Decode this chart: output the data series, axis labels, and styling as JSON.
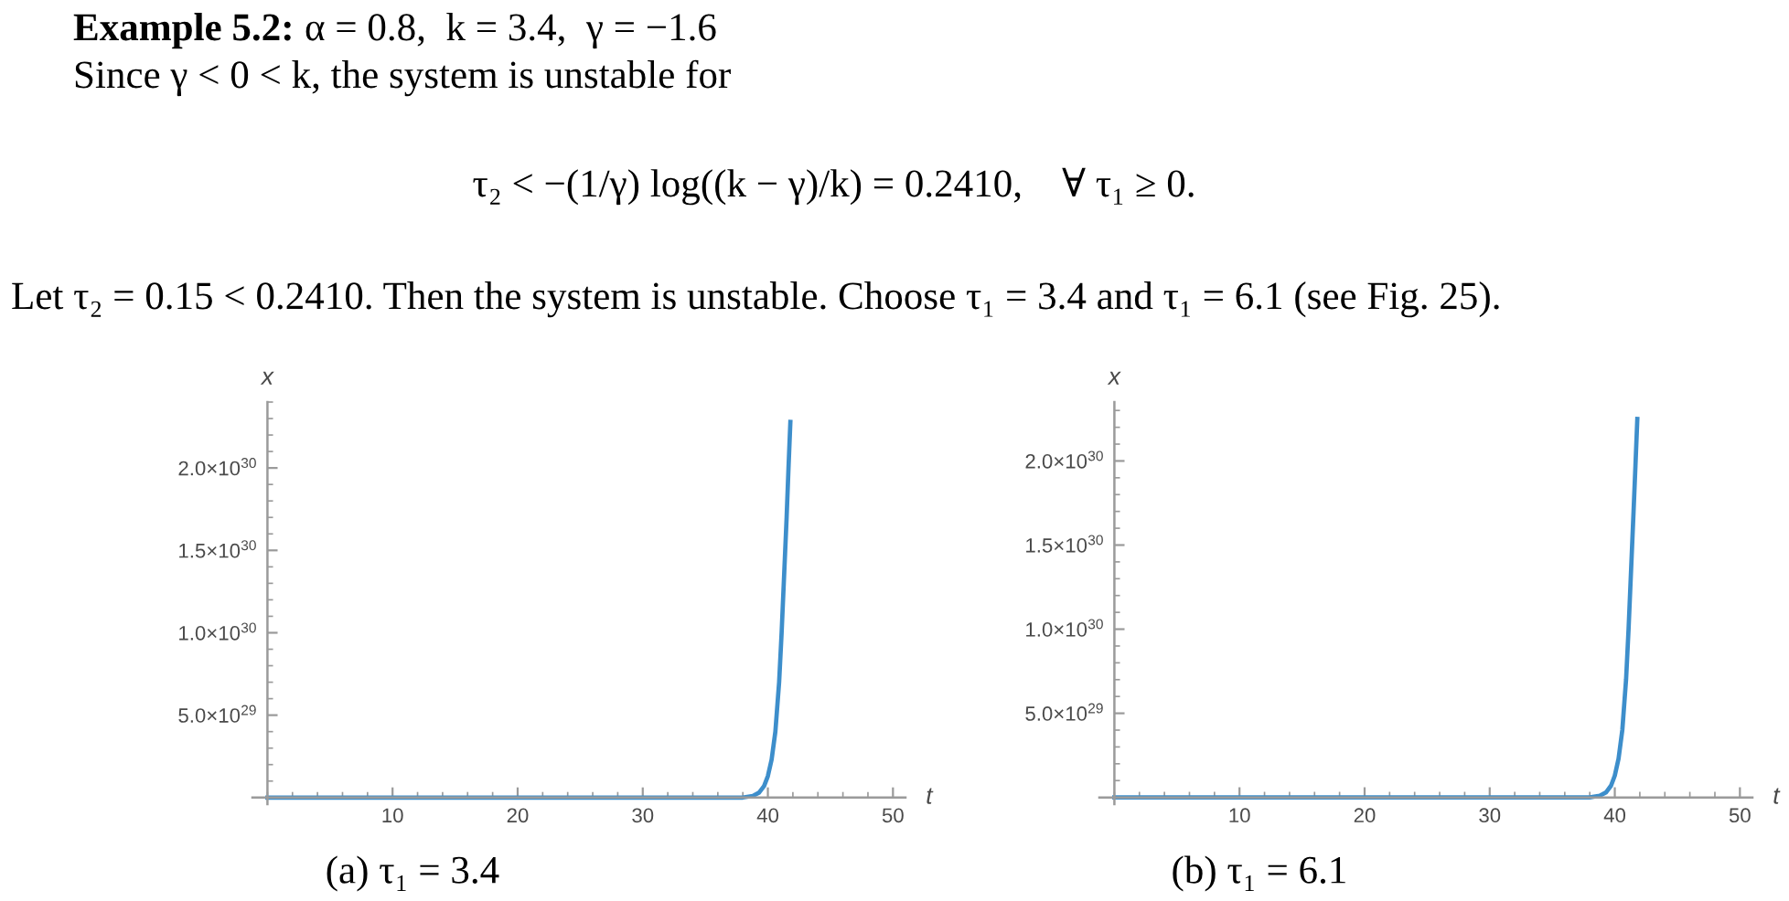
{
  "chart_data": [
    {
      "type": "line",
      "title": "Example 5.2:",
      "subtitle": "α = 0.8,  k = 3.4,  γ = −1.6",
      "annotations": [
        "Since γ < 0 < k, the system is unstable for",
        "τ₂ < −(1/γ) log((k − γ)/k) = 0.2410,    ∀ τ₁ ≥ 0.",
        "Let τ₂ = 0.15 < 0.2410. Then the system is unstable. Choose τ₁ = 3.4 and τ₁ = 6.1 (see Fig. 25).",
        "(a) τ₁ = 3.4"
      ],
      "xlabel": "t",
      "ylabel": "x",
      "xlim": [
        -1.2,
        51
      ],
      "xticks": [
        10,
        20,
        30,
        40,
        50
      ],
      "ylim": [
        -4e+28,
        2.4e+30
      ],
      "yticks": [
        {
          "value": 5e+29,
          "label": "5.0×10$^{29}$"
        },
        {
          "value": 1e+30,
          "label": "1.0×10$^{30}$"
        },
        {
          "value": 1.5e+30,
          "label": "1.5×10$^{30}$"
        },
        {
          "value": 2e+30,
          "label": "2.0×10$^{30}$"
        }
      ],
      "series": [
        {
          "color": "#3d8ecb",
          "x": [
            0,
            5,
            10,
            15,
            20,
            25,
            30,
            35,
            38,
            38.8,
            39.3,
            39.7,
            40.0,
            40.3,
            40.6,
            40.9,
            41.1,
            41.3,
            41.5,
            41.65,
            41.8
          ],
          "values": [
            0,
            0,
            0,
            0,
            0,
            0,
            0,
            0,
            0,
            1e+28,
            3e+28,
            7e+28,
            1.3e+29,
            2.3e+29,
            4e+29,
            7e+29,
            1e+30,
            1.35e+30,
            1.7e+30,
            2e+30,
            2.28e+30
          ]
        }
      ]
    },
    {
      "type": "line",
      "annotations": [
        "(b) τ₁ = 6.1"
      ],
      "xlabel": "t",
      "ylabel": "x",
      "xlim": [
        -1.2,
        51
      ],
      "xticks": [
        10,
        20,
        30,
        40,
        50
      ],
      "ylim": [
        -4e+28,
        2.35e+30
      ],
      "yticks": [
        {
          "value": 5e+29,
          "label": "5.0×10$^{29}$"
        },
        {
          "value": 1e+30,
          "label": "1.0×10$^{30}$"
        },
        {
          "value": 1.5e+30,
          "label": "1.5×10$^{30}$"
        },
        {
          "value": 2e+30,
          "label": "2.0×10$^{30}$"
        }
      ],
      "series": [
        {
          "color": "#3d8ecb",
          "x": [
            0,
            5,
            10,
            15,
            20,
            25,
            30,
            35,
            38,
            38.8,
            39.3,
            39.7,
            40.0,
            40.3,
            40.6,
            40.9,
            41.1,
            41.3,
            41.5,
            41.65,
            41.8
          ],
          "values": [
            0,
            0,
            0,
            0,
            0,
            0,
            0,
            0,
            0,
            1e+28,
            3e+28,
            7e+28,
            1.3e+29,
            2.3e+29,
            4e+29,
            7e+29,
            1e+30,
            1.35e+30,
            1.7e+30,
            1.97e+30,
            2.25e+30
          ]
        }
      ]
    }
  ]
}
